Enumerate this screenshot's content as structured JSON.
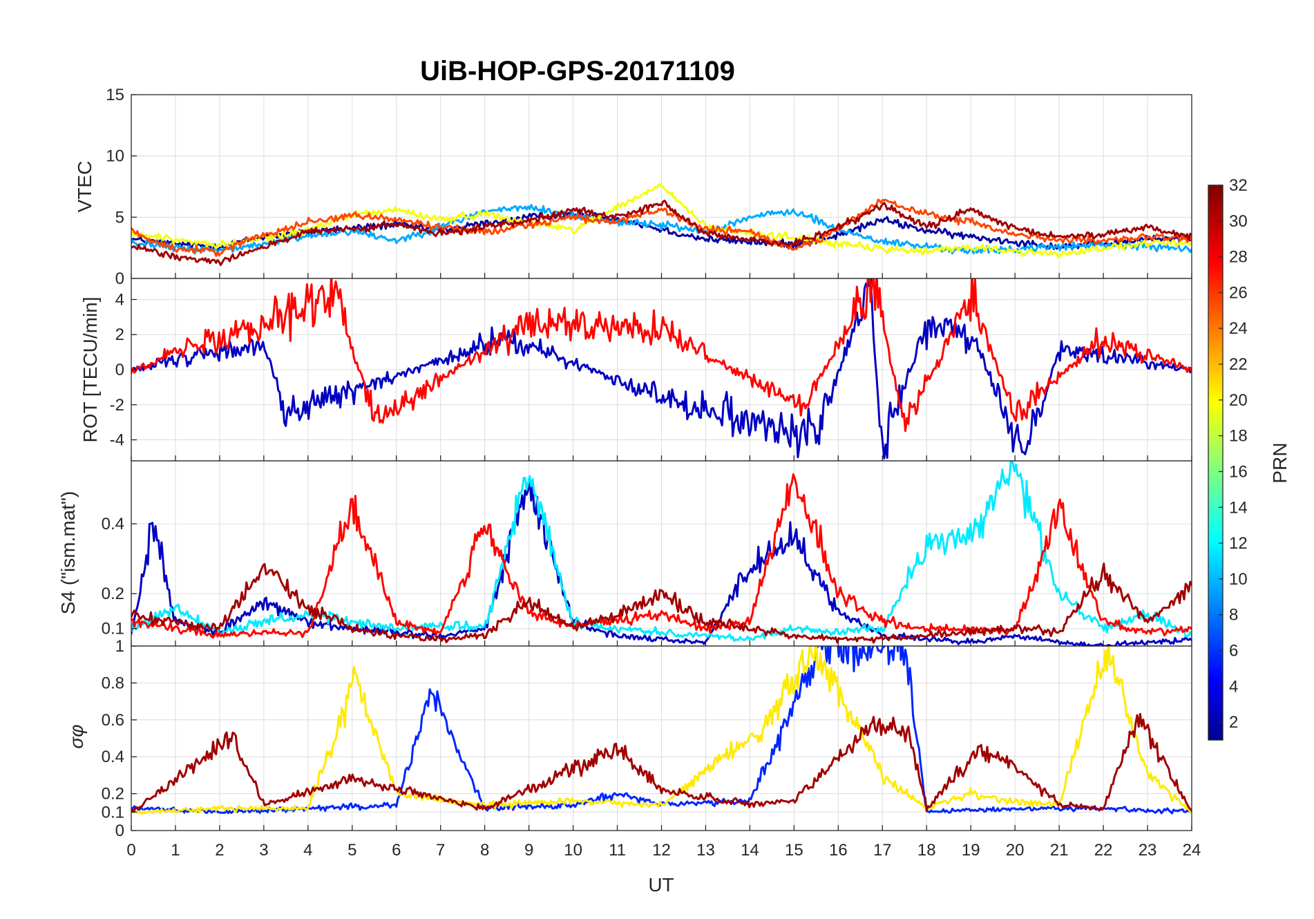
{
  "chart_data": {
    "type": "line",
    "title": "UiB-HOP-GPS-20171109",
    "xlabel": "UT",
    "xlim": [
      0,
      24
    ],
    "x_ticks": [
      "0",
      "1",
      "2",
      "3",
      "4",
      "5",
      "6",
      "7",
      "8",
      "9",
      "10",
      "11",
      "12",
      "13",
      "14",
      "15",
      "16",
      "17",
      "18",
      "19",
      "20",
      "21",
      "22",
      "23",
      "24"
    ],
    "grid": true,
    "colorbar": {
      "label": "PRN",
      "colormap": "jet",
      "range": [
        1,
        32
      ],
      "ticks": [
        "2",
        "4",
        "6",
        "8",
        "10",
        "12",
        "14",
        "16",
        "18",
        "20",
        "22",
        "24",
        "26",
        "28",
        "30",
        "32"
      ],
      "placement": "right"
    },
    "panels": [
      {
        "id": "vtec",
        "ylabel": "VTEC",
        "ylim": [
          0,
          15
        ],
        "y_ticks": [
          "0",
          "5",
          "10",
          "15"
        ],
        "series_sample": [
          {
            "prn": 2,
            "x": [
              0,
              1,
              2,
              3,
              4,
              5,
              6,
              7,
              8,
              9,
              10,
              11,
              12,
              13,
              14,
              15,
              16,
              17,
              18,
              19,
              20,
              21,
              22,
              23,
              24
            ],
            "y": [
              3.2,
              2.8,
              2.6,
              3.4,
              3.8,
              4.1,
              4.4,
              3.9,
              4.5,
              5.0,
              5.2,
              4.9,
              4.0,
              3.2,
              3.0,
              2.8,
              3.5,
              4.8,
              3.9,
              3.4,
              3.0,
              2.6,
              2.8,
              3.2,
              3.3
            ]
          },
          {
            "prn": 10,
            "x": [
              0,
              1,
              2,
              3,
              4,
              5,
              6,
              7,
              8,
              9,
              10,
              11,
              12,
              13,
              14,
              15,
              16,
              17,
              18,
              19,
              20,
              21,
              22,
              23,
              24
            ],
            "y": [
              3.0,
              2.5,
              2.3,
              2.8,
              3.5,
              3.9,
              3.1,
              4.2,
              5.5,
              5.8,
              5.1,
              4.6,
              4.4,
              3.8,
              5.0,
              5.5,
              4.0,
              3.0,
              2.6,
              2.2,
              2.4,
              2.6,
              2.7,
              2.6,
              2.5
            ]
          },
          {
            "prn": 20,
            "x": [
              0,
              1,
              2,
              3,
              4,
              5,
              6,
              7,
              8,
              9,
              10,
              11,
              12,
              13,
              14,
              15,
              16,
              17,
              18,
              19,
              20,
              21,
              22,
              23,
              24
            ],
            "y": [
              3.6,
              3.2,
              2.7,
              3.3,
              3.9,
              5.2,
              5.6,
              4.8,
              5.3,
              4.6,
              4.0,
              5.8,
              7.6,
              4.2,
              3.7,
              3.4,
              2.8,
              2.4,
              2.2,
              2.6,
              2.2,
              2.0,
              2.5,
              2.8,
              3.0
            ]
          },
          {
            "prn": 26,
            "x": [
              0,
              1,
              2,
              3,
              4,
              5,
              6,
              7,
              8,
              9,
              10,
              11,
              12,
              13,
              14,
              15,
              16,
              17,
              18,
              19,
              20,
              21,
              22,
              23,
              24
            ],
            "y": [
              3.8,
              2.4,
              2.2,
              3.6,
              4.6,
              5.2,
              4.8,
              4.2,
              3.8,
              4.4,
              5.0,
              4.6,
              5.6,
              4.0,
              3.8,
              2.4,
              4.0,
              6.4,
              5.2,
              4.6,
              3.6,
              3.2,
              3.0,
              3.4,
              3.2
            ]
          },
          {
            "prn": 31,
            "x": [
              0,
              1,
              2,
              3,
              4,
              5,
              6,
              7,
              8,
              9,
              10,
              11,
              12,
              13,
              14,
              15,
              16,
              17,
              18,
              19,
              20,
              21,
              22,
              23,
              24
            ],
            "y": [
              2.6,
              1.8,
              1.4,
              2.6,
              3.8,
              4.0,
              4.4,
              3.6,
              4.2,
              4.8,
              5.6,
              5.0,
              6.2,
              3.6,
              3.2,
              2.8,
              4.2,
              6.0,
              4.2,
              5.6,
              4.0,
              3.4,
              3.6,
              4.2,
              3.4
            ]
          }
        ]
      },
      {
        "id": "rot",
        "ylabel": "ROT [TECU/min]",
        "ylim": [
          -5.2,
          5.2
        ],
        "y_ticks": [
          "-4",
          "-2",
          "0",
          "2",
          "4"
        ],
        "series_sample": [
          {
            "prn": 3,
            "note_x": "quiet then bursts",
            "x": [
              0,
              3,
              3.5,
              8.5,
              12,
              15.5,
              16.7,
              17,
              18,
              19,
              20.2,
              21,
              24
            ],
            "y": [
              0,
              1.5,
              -2.5,
              1.8,
              -1.5,
              -3.8,
              4.8,
              -4.2,
              2.4,
              2.0,
              -4.8,
              1.2,
              0
            ]
          },
          {
            "prn": 28,
            "x": [
              0,
              4.6,
              5.5,
              9,
              12,
              15.2,
              16.8,
              17.5,
              19,
              20,
              22,
              24
            ],
            "y": [
              0,
              4.4,
              -2.8,
              2.6,
              2.2,
              -2.2,
              5.0,
              -3.2,
              4.2,
              -2.6,
              1.8,
              0
            ]
          }
        ]
      },
      {
        "id": "s4",
        "ylabel": "S4 (\"ism.mat\")",
        "ylim": [
          0.05,
          0.58
        ],
        "y_ticks": [
          "0.1",
          "0.2",
          "0.4"
        ],
        "series_sample": [
          {
            "prn": 3,
            "x": [
              0,
              0.5,
              1,
              2,
              3,
              4,
              5,
              6,
              7,
              8,
              9,
              10,
              11,
              12,
              13,
              14,
              15,
              16,
              17,
              18,
              19,
              20,
              21,
              22,
              23,
              24
            ],
            "y": [
              0.08,
              0.41,
              0.12,
              0.09,
              0.18,
              0.12,
              0.1,
              0.09,
              0.08,
              0.1,
              0.52,
              0.12,
              0.08,
              0.07,
              0.06,
              0.28,
              0.36,
              0.15,
              0.08,
              0.07,
              0.06,
              0.08,
              0.06,
              0.05,
              0.06,
              0.07
            ]
          },
          {
            "prn": 12,
            "x": [
              0,
              1,
              2,
              3,
              4,
              5,
              6,
              7,
              8,
              9,
              10,
              11,
              12,
              13,
              14,
              15,
              16,
              17,
              18,
              19,
              20,
              21,
              22,
              23,
              24
            ],
            "y": [
              0.1,
              0.16,
              0.09,
              0.12,
              0.14,
              0.12,
              0.1,
              0.11,
              0.1,
              0.56,
              0.12,
              0.1,
              0.09,
              0.08,
              0.07,
              0.1,
              0.09,
              0.1,
              0.34,
              0.36,
              0.58,
              0.2,
              0.1,
              0.14,
              0.08
            ]
          },
          {
            "prn": 28,
            "x": [
              0,
              1,
              2,
              3,
              4,
              5,
              6,
              7,
              8,
              9,
              10,
              11,
              12,
              13,
              14,
              15,
              16,
              17,
              18,
              19,
              20,
              21,
              22,
              23,
              24
            ],
            "y": [
              0.12,
              0.1,
              0.08,
              0.09,
              0.09,
              0.45,
              0.12,
              0.09,
              0.39,
              0.14,
              0.11,
              0.12,
              0.14,
              0.1,
              0.12,
              0.54,
              0.2,
              0.12,
              0.1,
              0.1,
              0.09,
              0.44,
              0.12,
              0.09,
              0.1
            ]
          },
          {
            "prn": 31,
            "x": [
              0,
              1,
              2,
              3,
              4,
              5,
              6,
              7,
              8,
              9,
              10,
              11,
              12,
              13,
              14,
              15,
              16,
              17,
              18,
              19,
              20,
              21,
              22,
              23,
              24
            ],
            "y": [
              0.14,
              0.12,
              0.1,
              0.28,
              0.16,
              0.1,
              0.08,
              0.07,
              0.08,
              0.18,
              0.1,
              0.14,
              0.2,
              0.12,
              0.1,
              0.08,
              0.07,
              0.07,
              0.08,
              0.09,
              0.1,
              0.09,
              0.26,
              0.12,
              0.22
            ]
          }
        ]
      },
      {
        "id": "sigma_phi",
        "ylabel": "σφ",
        "ylim": [
          0,
          1
        ],
        "y_ticks": [
          "0",
          "0.1",
          "0.2",
          "0.4",
          "0.6",
          "0.8",
          "1"
        ],
        "series_sample": [
          {
            "prn": 6,
            "x": [
              0,
              2,
              4,
              6,
              6.8,
              8,
              10,
              11,
              12,
              14,
              15.6,
              16.4,
              16.8,
              17.5,
              18,
              20,
              22,
              24
            ],
            "y": [
              0.12,
              0.1,
              0.12,
              0.14,
              0.76,
              0.12,
              0.14,
              0.2,
              0.14,
              0.16,
              1.0,
              1.0,
              1.0,
              1.0,
              0.1,
              0.12,
              0.12,
              0.1
            ]
          },
          {
            "prn": 21,
            "x": [
              0,
              2,
              4,
              5.1,
              6,
              8,
              10,
              12,
              14.3,
              15.5,
              17,
              18,
              19,
              20,
              21,
              22.1,
              23,
              24
            ],
            "y": [
              0.1,
              0.12,
              0.12,
              0.84,
              0.2,
              0.14,
              0.16,
              0.14,
              0.56,
              1.0,
              0.3,
              0.12,
              0.2,
              0.16,
              0.14,
              1.0,
              0.3,
              0.1
            ]
          },
          {
            "prn": 31,
            "x": [
              0,
              2.3,
              3,
              5,
              8,
              11,
              12,
              14,
              15,
              16.8,
              17.6,
              18,
              19.2,
              20,
              21,
              22,
              22.8,
              24
            ],
            "y": [
              0.1,
              0.51,
              0.14,
              0.28,
              0.12,
              0.44,
              0.22,
              0.14,
              0.16,
              0.58,
              0.54,
              0.12,
              0.44,
              0.36,
              0.14,
              0.12,
              0.6,
              0.1
            ]
          }
        ]
      }
    ]
  }
}
